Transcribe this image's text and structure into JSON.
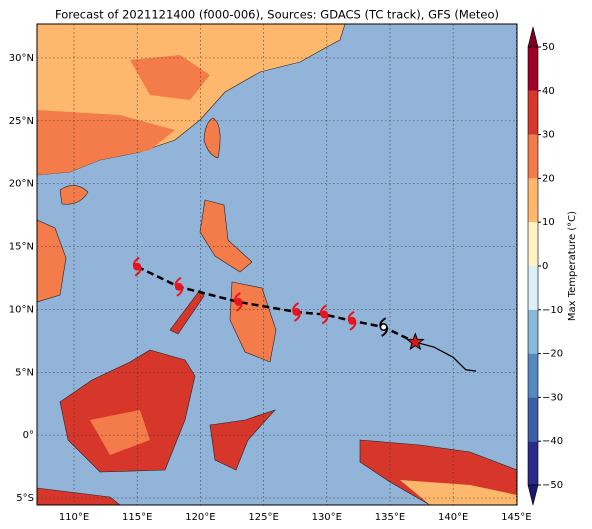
{
  "map": {
    "title": "Forecast of 2021121400 (f000-006), Sources: GDACS (TC track), GFS (Meteo)",
    "lonlim": [
      107.07,
      145.05
    ],
    "latlim": [
      -5.55,
      32.7
    ],
    "lonticks": [
      {
        "value": 110,
        "label": "110°E"
      },
      {
        "value": 115,
        "label": "115°E"
      },
      {
        "value": 120,
        "label": "120°E"
      },
      {
        "value": 125,
        "label": "125°E"
      },
      {
        "value": 130,
        "label": "130°E"
      },
      {
        "value": 135,
        "label": "135°E"
      },
      {
        "value": 140,
        "label": "140°E"
      },
      {
        "value": 145,
        "label": "145°E"
      }
    ],
    "latticks": [
      {
        "value": -5,
        "label": "5°S"
      },
      {
        "value": 0,
        "label": "0°"
      },
      {
        "value": 5,
        "label": "5°N"
      },
      {
        "value": 10,
        "label": "10°N"
      },
      {
        "value": 15,
        "label": "15°N"
      },
      {
        "value": 20,
        "label": "20°N"
      },
      {
        "value": 25,
        "label": "25°N"
      },
      {
        "value": 30,
        "label": "30°N"
      }
    ],
    "grid": true,
    "track": {
      "forecast": {
        "lon": [
          115,
          118.3,
          123,
          127.6,
          129.8,
          132
        ],
        "lat": [
          13.4,
          11.8,
          10.6,
          9.8,
          9.6,
          9.1
        ],
        "color": "#e8141c"
      },
      "past": {
        "lon": [
          134.5
        ],
        "lat": [
          8.6
        ],
        "color": "#000000"
      },
      "current": {
        "lon": 137,
        "lat": 7.4,
        "color": "#d7191c"
      },
      "dashed": {
        "lon": [
          115,
          118.3,
          123,
          127.6,
          129.8,
          132,
          134.5,
          137
        ],
        "lat": [
          13.4,
          11.8,
          10.6,
          9.8,
          9.6,
          9.1,
          8.6,
          7.4
        ]
      },
      "history": {
        "lon": [
          137,
          138.5,
          140,
          141,
          141.8
        ],
        "lat": [
          7.4,
          7,
          6.2,
          5.2,
          5.1
        ]
      }
    },
    "colorbar": {
      "label": "Max Temperature (°C)",
      "lim": [
        -50,
        50
      ],
      "ticks": [
        {
          "value": -50,
          "label": "−50"
        },
        {
          "value": -40,
          "label": "−40"
        },
        {
          "value": -30,
          "label": "−30"
        },
        {
          "value": -20,
          "label": "−20"
        },
        {
          "value": -10,
          "label": "−10"
        },
        0,
        10,
        20,
        30,
        40,
        50
      ],
      "bounds": [
        -50,
        -40,
        -30,
        -20,
        -10,
        0,
        10,
        20,
        30,
        40,
        50
      ],
      "colors": [
        "#2a2a8a",
        "#3b5ea6",
        "#5589c0",
        "#89bad9",
        "#dcf0f5",
        "#fff3c4",
        "#fdb86d",
        "#f47c4a",
        "#d6372a",
        "#a00026"
      ],
      "under": "#1b1a6e",
      "over": "#7d0025"
    }
  }
}
